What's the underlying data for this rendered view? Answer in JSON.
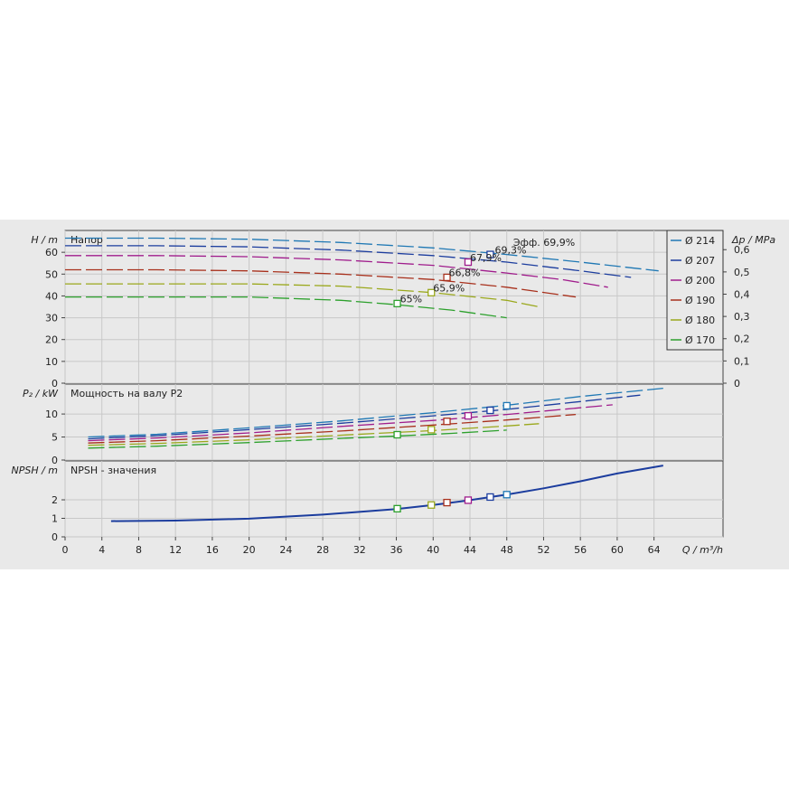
{
  "chart_data": {
    "type": "line",
    "xlabel": "Q / m³/h",
    "x_ticks": [
      0,
      4,
      8,
      12,
      16,
      20,
      24,
      28,
      32,
      36,
      40,
      44,
      48,
      52,
      56,
      60,
      64
    ],
    "xlim": [
      0,
      71.5
    ],
    "legend": [
      {
        "name": "Ø 214",
        "color": "#1f78b4"
      },
      {
        "name": "Ø 207",
        "color": "#1c3d9e"
      },
      {
        "name": "Ø 200",
        "color": "#a01c8c"
      },
      {
        "name": "Ø 190",
        "color": "#a8301c"
      },
      {
        "name": "Ø 180",
        "color": "#9aa81c"
      },
      {
        "name": "Ø 170",
        "color": "#2ca02c"
      }
    ],
    "panels": [
      {
        "key": "head",
        "title": "Напор",
        "ylabel": "H / m",
        "ylim": [
          0,
          70
        ],
        "y_ticks": [
          0,
          10,
          20,
          30,
          40,
          50,
          60
        ],
        "y2label": "Δp / MPa",
        "y2_ticks": [
          "0",
          "0,1",
          "0,2",
          "0,3",
          "0,4",
          "0,5",
          "0,6"
        ],
        "series": [
          {
            "x": [
              0,
              10,
              20,
              30,
              40,
              48,
              56,
              64.5
            ],
            "y": [
              66.5,
              66.5,
              66,
              64.5,
              62,
              59,
              55.5,
              51.5
            ],
            "color": "#1f78b4",
            "dash": true
          },
          {
            "x": [
              0,
              10,
              20,
              30,
              40,
              48,
              56,
              61.5
            ],
            "y": [
              63,
              63,
              62.5,
              61,
              58.5,
              55.5,
              51.5,
              48.5
            ],
            "color": "#1c3d9e",
            "dash": true
          },
          {
            "x": [
              0,
              10,
              20,
              30,
              40,
              48,
              54,
              59
            ],
            "y": [
              58.5,
              58.5,
              58,
              56.5,
              54,
              50.5,
              47.5,
              44
            ],
            "color": "#a01c8c",
            "dash": true
          },
          {
            "x": [
              0,
              10,
              20,
              30,
              40,
              48,
              55.5
            ],
            "y": [
              52,
              52,
              51.5,
              50,
              47.5,
              44,
              39.5
            ],
            "color": "#a8301c",
            "dash": true
          },
          {
            "x": [
              0,
              10,
              20,
              30,
              40,
              48,
              51.5
            ],
            "y": [
              45.5,
              45.5,
              45.5,
              44.5,
              41.5,
              38,
              35
            ],
            "color": "#9aa81c",
            "dash": true
          },
          {
            "x": [
              0,
              10,
              20,
              30,
              36,
              42,
              48
            ],
            "y": [
              39.5,
              39.5,
              39.5,
              38,
              36,
              33.5,
              30
            ],
            "color": "#2ca02c",
            "dash": true
          }
        ],
        "points": [
          {
            "x": 46.2,
            "y": 59,
            "color": "#1c3d9e"
          },
          {
            "x": 43.8,
            "y": 55.5,
            "color": "#a01c8c"
          },
          {
            "x": 41.5,
            "y": 48.5,
            "color": "#a8301c"
          },
          {
            "x": 39.8,
            "y": 41.5,
            "color": "#9aa81c"
          },
          {
            "x": 36.1,
            "y": 36.5,
            "color": "#2ca02c"
          }
        ],
        "annotations": [
          {
            "text": "Эфф.  69,9%",
            "x": 48.5,
            "y": 63,
            "color": "#1f78b4"
          },
          {
            "text": "69,3%",
            "x": 46.5,
            "y": 59.5,
            "color": "#1c3d9e"
          },
          {
            "text": "67,9%",
            "x": 43.8,
            "y": 56,
            "color": "#a01c8c"
          },
          {
            "text": "66,8%",
            "x": 41.5,
            "y": 49,
            "color": "#a8301c"
          },
          {
            "text": "65,9%",
            "x": 39.8,
            "y": 42,
            "color": "#9aa81c"
          },
          {
            "text": "65%",
            "x": 36.2,
            "y": 37,
            "color": "#2ca02c"
          }
        ]
      },
      {
        "key": "power",
        "title": "Мощность на валу P2",
        "ylabel": "P₂ / kW",
        "ylim": [
          0,
          16.5
        ],
        "y_ticks": [
          0,
          5,
          10
        ],
        "series": [
          {
            "x": [
              2.5,
              10,
              20,
              30,
              40,
              48,
              56,
              65
            ],
            "y": [
              5.0,
              5.6,
              7.0,
              8.5,
              10.3,
              11.9,
              13.8,
              15.6
            ],
            "color": "#1f78b4",
            "dash": true
          },
          {
            "x": [
              2.5,
              10,
              20,
              30,
              40,
              48,
              56,
              62.5
            ],
            "y": [
              4.6,
              5.3,
              6.6,
              8.0,
              9.6,
              11.0,
              12.7,
              14.1
            ],
            "color": "#1c3d9e",
            "dash": true
          },
          {
            "x": [
              2.5,
              10,
              20,
              30,
              40,
              48,
              59.5
            ],
            "y": [
              4.2,
              4.8,
              5.9,
              7.3,
              8.6,
              9.9,
              12.0
            ],
            "color": "#a01c8c",
            "dash": true
          },
          {
            "x": [
              2.5,
              10,
              20,
              30,
              40,
              48,
              55.5
            ],
            "y": [
              3.7,
              4.2,
              5.2,
              6.3,
              7.6,
              8.7,
              9.9
            ],
            "color": "#a8301c",
            "dash": true
          },
          {
            "x": [
              2.5,
              10,
              20,
              30,
              40,
              48,
              51.5
            ],
            "y": [
              3.2,
              3.6,
              4.4,
              5.4,
              6.4,
              7.4,
              7.9
            ],
            "color": "#9aa81c",
            "dash": true
          },
          {
            "x": [
              2.5,
              10,
              20,
              30,
              36,
              42,
              48
            ],
            "y": [
              2.6,
              3.0,
              3.8,
              4.7,
              5.2,
              5.8,
              6.5
            ],
            "color": "#2ca02c",
            "dash": true
          }
        ],
        "points": [
          {
            "x": 48.0,
            "y": 11.8,
            "color": "#1f78b4"
          },
          {
            "x": 46.2,
            "y": 10.8,
            "color": "#1c3d9e"
          },
          {
            "x": 43.8,
            "y": 9.6,
            "color": "#a01c8c"
          },
          {
            "x": 41.5,
            "y": 8.4,
            "color": "#a8301c"
          },
          {
            "x": 39.8,
            "y": 6.6,
            "color": "#9aa81c"
          },
          {
            "x": 36.1,
            "y": 5.5,
            "color": "#2ca02c"
          }
        ]
      },
      {
        "key": "npsh",
        "title": "NPSH - значения",
        "ylabel": "NPSH / m",
        "ylim": [
          0,
          4.1
        ],
        "y_ticks": [
          0,
          1,
          2
        ],
        "series": [
          {
            "x": [
              5,
              12,
              20,
              28,
              36,
              40,
              44,
              48,
              52,
              56,
              60,
              65
            ],
            "y": [
              0.85,
              0.88,
              0.98,
              1.2,
              1.5,
              1.72,
              1.98,
              2.28,
              2.62,
              3.0,
              3.42,
              3.85
            ],
            "color": "#1c3d9e",
            "dash": false
          }
        ],
        "points": [
          {
            "x": 48.0,
            "y": 2.28,
            "color": "#1f78b4"
          },
          {
            "x": 46.2,
            "y": 2.15,
            "color": "#1c3d9e"
          },
          {
            "x": 43.8,
            "y": 1.98,
            "color": "#a01c8c"
          },
          {
            "x": 41.5,
            "y": 1.85,
            "color": "#a8301c"
          },
          {
            "x": 39.8,
            "y": 1.72,
            "color": "#9aa81c"
          },
          {
            "x": 36.1,
            "y": 1.52,
            "color": "#2ca02c"
          }
        ]
      }
    ]
  }
}
